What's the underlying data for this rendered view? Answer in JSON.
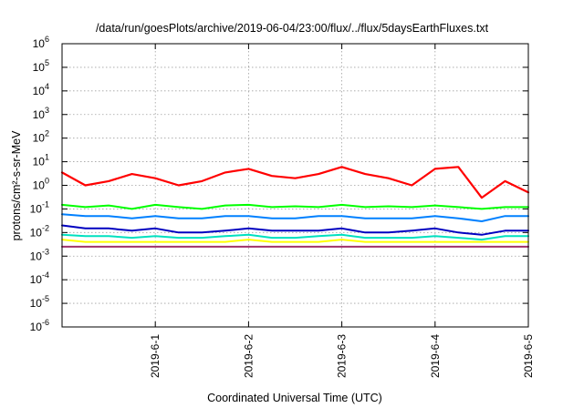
{
  "chart_data": {
    "type": "line",
    "title": "/data/run/goesPlots/archive/2019-06-04/23:00/flux/../flux/5daysEarthFluxes.txt",
    "xlabel": "Coordinated Universal Time (UTC)",
    "ylabel": "protons/cm²-s-sr-MeV",
    "yscale": "log",
    "ylim": [
      1e-06,
      1000000.0
    ],
    "xlim": [
      "2019-05-31",
      "2019-06-05"
    ],
    "x_ticks": [
      "2019-6-1",
      "2019-6-2",
      "2019-6-3",
      "2019-6-4",
      "2019-6-5"
    ],
    "y_ticks": [
      {
        "base": "10",
        "exp": "-6"
      },
      {
        "base": "10",
        "exp": "-5"
      },
      {
        "base": "10",
        "exp": "-4"
      },
      {
        "base": "10",
        "exp": "-3"
      },
      {
        "base": "10",
        "exp": "-2"
      },
      {
        "base": "10",
        "exp": "-1"
      },
      {
        "base": "10",
        "exp": "0"
      },
      {
        "base": "10",
        "exp": "1"
      },
      {
        "base": "10",
        "exp": "2"
      },
      {
        "base": "10",
        "exp": "3"
      },
      {
        "base": "10",
        "exp": "4"
      },
      {
        "base": "10",
        "exp": "5"
      },
      {
        "base": "10",
        "exp": "6"
      }
    ],
    "grid": true,
    "x": [
      "2019-05-31 00:00",
      "2019-05-31 06:00",
      "2019-05-31 12:00",
      "2019-05-31 18:00",
      "2019-06-01 00:00",
      "2019-06-01 06:00",
      "2019-06-01 12:00",
      "2019-06-01 18:00",
      "2019-06-02 00:00",
      "2019-06-02 06:00",
      "2019-06-02 12:00",
      "2019-06-02 18:00",
      "2019-06-03 00:00",
      "2019-06-03 06:00",
      "2019-06-03 12:00",
      "2019-06-03 18:00",
      "2019-06-04 00:00",
      "2019-06-04 06:00",
      "2019-06-04 12:00",
      "2019-06-04 18:00",
      "2019-06-05 00:00"
    ],
    "series": [
      {
        "color": "#ff0000",
        "values": [
          3.5,
          1.0,
          1.5,
          3.0,
          2.0,
          1.0,
          1.5,
          3.5,
          5.0,
          2.5,
          2.0,
          3.0,
          6.0,
          3.0,
          2.0,
          1.0,
          5.0,
          6.0,
          0.3,
          1.5,
          0.5
        ]
      },
      {
        "color": "#00ff00",
        "values": [
          0.15,
          0.12,
          0.14,
          0.1,
          0.15,
          0.12,
          0.1,
          0.14,
          0.15,
          0.12,
          0.13,
          0.12,
          0.15,
          0.12,
          0.13,
          0.12,
          0.14,
          0.12,
          0.1,
          0.12,
          0.12
        ]
      },
      {
        "color": "#0080ff",
        "values": [
          0.06,
          0.05,
          0.05,
          0.04,
          0.05,
          0.04,
          0.04,
          0.05,
          0.05,
          0.04,
          0.04,
          0.05,
          0.05,
          0.04,
          0.04,
          0.04,
          0.05,
          0.04,
          0.03,
          0.05,
          0.05
        ]
      },
      {
        "color": "#0000c0",
        "values": [
          0.02,
          0.015,
          0.015,
          0.012,
          0.015,
          0.01,
          0.01,
          0.012,
          0.015,
          0.012,
          0.012,
          0.012,
          0.015,
          0.01,
          0.01,
          0.012,
          0.015,
          0.01,
          0.008,
          0.012,
          0.012
        ]
      },
      {
        "color": "#00e0c0",
        "values": [
          0.008,
          0.007,
          0.007,
          0.006,
          0.007,
          0.006,
          0.006,
          0.007,
          0.008,
          0.006,
          0.006,
          0.007,
          0.008,
          0.006,
          0.006,
          0.006,
          0.007,
          0.006,
          0.005,
          0.007,
          0.007
        ]
      },
      {
        "color": "#ffff00",
        "values": [
          0.005,
          0.004,
          0.004,
          0.004,
          0.004,
          0.004,
          0.004,
          0.004,
          0.005,
          0.004,
          0.004,
          0.004,
          0.005,
          0.004,
          0.004,
          0.004,
          0.004,
          0.004,
          0.004,
          0.004,
          0.004
        ]
      },
      {
        "color": "#a0306a",
        "values": [
          0.0025,
          0.0025,
          0.0025,
          0.0025,
          0.0025,
          0.0025,
          0.0025,
          0.0025,
          0.0025,
          0.0025,
          0.0025,
          0.0025,
          0.0025,
          0.0025,
          0.0025,
          0.0025,
          0.0025,
          0.0025,
          0.0025,
          0.0025,
          0.0025
        ]
      }
    ]
  }
}
